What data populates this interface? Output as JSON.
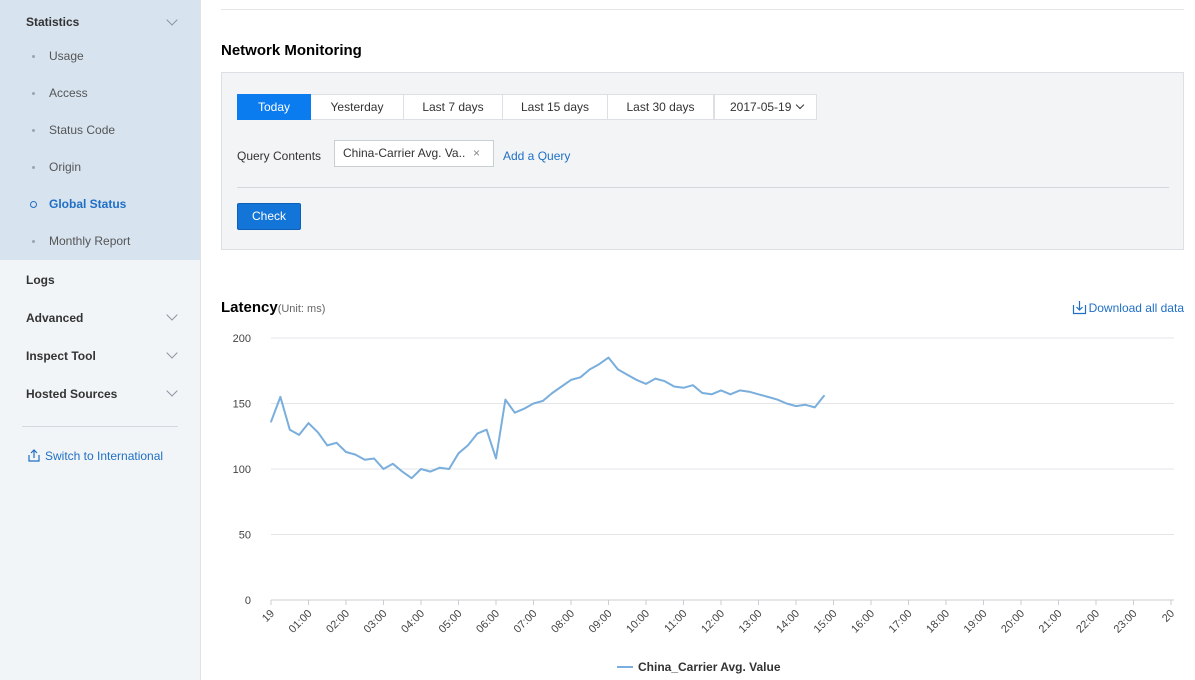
{
  "sidebar": {
    "statistics": {
      "label": "Statistics",
      "items": [
        {
          "label": "Usage"
        },
        {
          "label": "Access"
        },
        {
          "label": "Status Code"
        },
        {
          "label": "Origin"
        },
        {
          "label": "Global Status"
        },
        {
          "label": "Monthly Report"
        }
      ]
    },
    "logs": "Logs",
    "advanced": "Advanced",
    "inspect_tool": "Inspect Tool",
    "hosted_sources": "Hosted Sources",
    "switch_label": "Switch to International"
  },
  "main": {
    "title": "Network Monitoring",
    "tabs": [
      "Today",
      "Yesterday",
      "Last 7 days",
      "Last 15 days",
      "Last 30 days"
    ],
    "date": "2017-05-19",
    "query_label": "Query Contents",
    "query_tag": "China-Carrier Avg. Va..",
    "query_tag_close": "×",
    "add_query": "Add a Query",
    "check": "Check",
    "latency_title": "Latency",
    "latency_unit": "(Unit: ms)",
    "download": "Download all data"
  },
  "chart_data": {
    "type": "line",
    "title": "Latency",
    "ylabel": "",
    "xlabel": "",
    "ylim": [
      0,
      200
    ],
    "yticks": [
      0,
      50,
      100,
      150,
      200
    ],
    "xticks": [
      "19",
      "01:00",
      "02:00",
      "03:00",
      "04:00",
      "05:00",
      "06:00",
      "07:00",
      "08:00",
      "09:00",
      "10:00",
      "11:00",
      "12:00",
      "13:00",
      "14:00",
      "15:00",
      "16:00",
      "17:00",
      "18:00",
      "19:00",
      "20:00",
      "21:00",
      "22:00",
      "23:00",
      "20"
    ],
    "grid": "horizontal",
    "legend": "bottom-center",
    "series": [
      {
        "name": "China_Carrier Avg. Value",
        "color": "#7aaedc",
        "x_hours": [
          0,
          0.25,
          0.5,
          0.75,
          1,
          1.25,
          1.5,
          1.75,
          2,
          2.25,
          2.5,
          2.75,
          3,
          3.25,
          3.5,
          3.75,
          4,
          4.25,
          4.5,
          4.75,
          5,
          5.25,
          5.5,
          5.75,
          6,
          6.25,
          6.5,
          6.75,
          7,
          7.25,
          7.5,
          7.75,
          8,
          8.25,
          8.5,
          8.75,
          9,
          9.25,
          9.5,
          9.75,
          10,
          10.25,
          10.5,
          10.75,
          11,
          11.25,
          11.5,
          11.75,
          12,
          12.25,
          12.5,
          12.75,
          13,
          13.25,
          13.5,
          13.75,
          14,
          14.25,
          14.5,
          14.75
        ],
        "values": [
          136,
          155,
          130,
          126,
          135,
          128,
          118,
          120,
          113,
          111,
          107,
          108,
          100,
          104,
          98,
          93,
          100,
          98,
          101,
          100,
          112,
          118,
          127,
          130,
          108,
          153,
          143,
          146,
          150,
          152,
          158,
          163,
          168,
          170,
          176,
          180,
          185,
          176,
          172,
          168,
          165,
          169,
          167,
          163,
          162,
          164,
          158,
          157,
          160,
          157,
          160,
          159,
          157,
          155,
          153,
          150,
          148,
          149,
          147,
          156
        ]
      }
    ]
  }
}
